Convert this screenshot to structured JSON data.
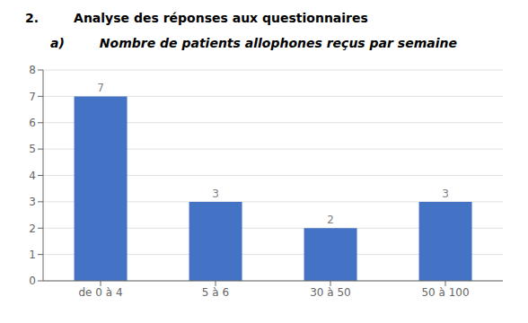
{
  "chart_data": {
    "type": "bar",
    "title": "2.        Analyse des réponses aux questionnaires",
    "subtitle": "a)        Nombre de patients allophones reçus par semaine",
    "categories": [
      "de 0 à 4",
      "5 à 6",
      "30 à 50",
      "50 à 100"
    ],
    "values": [
      7,
      3,
      2,
      3
    ],
    "color": "#4472C4",
    "ylim": [
      0,
      8
    ],
    "yticks": [
      0,
      1,
      2,
      3,
      4,
      5,
      6,
      7,
      8
    ],
    "grid": true,
    "data_labels": true
  }
}
